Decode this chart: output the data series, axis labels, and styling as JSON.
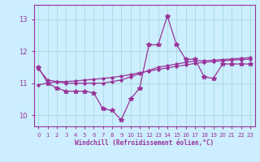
{
  "x": [
    0,
    1,
    2,
    3,
    4,
    5,
    6,
    7,
    8,
    9,
    10,
    11,
    12,
    13,
    14,
    15,
    16,
    17,
    18,
    19,
    20,
    21,
    22,
    23
  ],
  "y_main": [
    11.5,
    11.0,
    10.85,
    10.75,
    10.75,
    10.75,
    10.7,
    10.2,
    10.15,
    9.85,
    10.5,
    10.85,
    12.2,
    12.2,
    13.1,
    12.2,
    11.75,
    11.75,
    11.2,
    11.15,
    11.6,
    11.6,
    11.6,
    11.6
  ],
  "y_line2": [
    11.45,
    11.1,
    11.05,
    11.0,
    11.0,
    11.0,
    11.0,
    11.0,
    11.05,
    11.1,
    11.2,
    11.3,
    11.4,
    11.5,
    11.55,
    11.6,
    11.65,
    11.7,
    11.7,
    11.72,
    11.74,
    11.76,
    11.78,
    11.8
  ],
  "y_line3": [
    10.95,
    11.0,
    11.05,
    11.05,
    11.07,
    11.1,
    11.12,
    11.15,
    11.18,
    11.22,
    11.27,
    11.33,
    11.38,
    11.43,
    11.48,
    11.53,
    11.57,
    11.62,
    11.65,
    11.68,
    11.7,
    11.72,
    11.74,
    11.75
  ],
  "line_color": "#993399",
  "bg_color": "#cceeff",
  "grid_color": "#aadddd",
  "axis_color": "#993399",
  "xlabel": "Windchill (Refroidissement éolien,°C)",
  "ylim": [
    9.65,
    13.45
  ],
  "xlim": [
    -0.5,
    23.5
  ],
  "yticks": [
    10,
    11,
    12,
    13
  ],
  "xticks": [
    0,
    1,
    2,
    3,
    4,
    5,
    6,
    7,
    8,
    9,
    10,
    11,
    12,
    13,
    14,
    15,
    16,
    17,
    18,
    19,
    20,
    21,
    22,
    23
  ]
}
